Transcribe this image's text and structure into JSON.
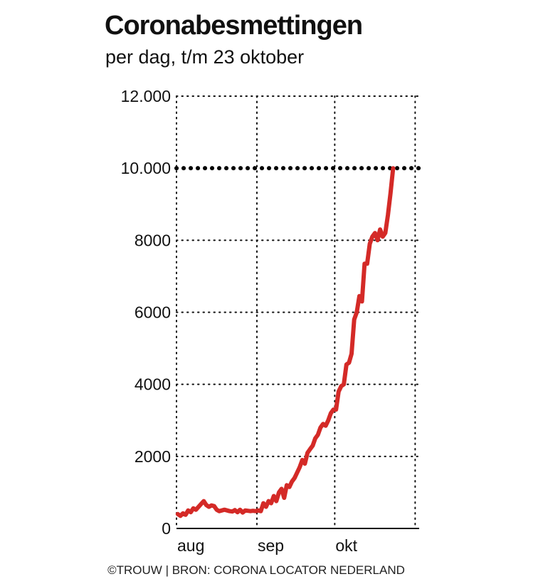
{
  "chart_data": {
    "type": "line",
    "title": "Coronabesmettingen",
    "subtitle": "per dag, t/m 23 oktober",
    "xlabel": "",
    "ylabel": "",
    "ylim": [
      0,
      12000
    ],
    "yticks": [
      0,
      2000,
      4000,
      6000,
      8000,
      10000,
      12000
    ],
    "ytick_labels": [
      "0",
      "2000",
      "4000",
      "6000",
      "8000",
      "10.000",
      "12.000"
    ],
    "xtick_labels": [
      "aug",
      "sep",
      "okt"
    ],
    "x_start": "1 aug",
    "x_end": "23 okt",
    "grid": true,
    "reference_line": 10000,
    "series": [
      {
        "name": "Besmettingen per dag",
        "color": "#d42a27",
        "values": [
          400,
          350,
          420,
          380,
          500,
          450,
          560,
          520,
          600,
          680,
          760,
          650,
          600,
          640,
          620,
          520,
          480,
          500,
          520,
          500,
          480,
          470,
          510,
          450,
          520,
          440,
          500,
          490,
          480,
          490,
          480,
          500,
          480,
          700,
          600,
          760,
          700,
          900,
          760,
          1000,
          1100,
          850,
          1200,
          1150,
          1300,
          1400,
          1550,
          1700,
          1900,
          1800,
          2100,
          2200,
          2300,
          2500,
          2600,
          2800,
          2900,
          2850,
          3000,
          3200,
          3300,
          3300,
          3800,
          3950,
          4000,
          4550,
          4600,
          4850,
          5800,
          6000,
          6450,
          6300,
          7350,
          7350,
          7900,
          8100,
          8200,
          8000,
          8300,
          8100,
          8200,
          8700,
          9300,
          10000
        ]
      }
    ],
    "source": "©TROUW | BRON: CORONA LOCATOR NEDERLAND"
  }
}
